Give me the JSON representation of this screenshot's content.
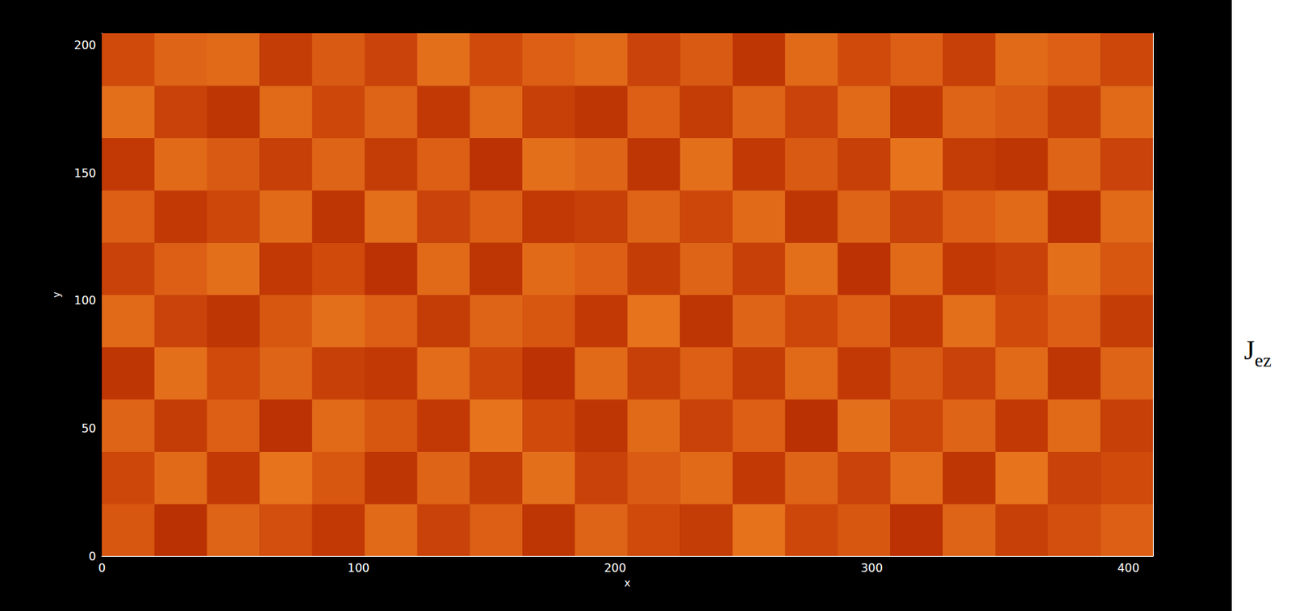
{
  "chart_data": {
    "type": "heatmap",
    "x_label": "x",
    "y_label": "y",
    "annotation": {
      "main": "J",
      "subscript": "ez"
    },
    "xlim": [
      0,
      409.6
    ],
    "ylim": [
      0,
      204.8
    ],
    "xticks": [
      0,
      100,
      200,
      300,
      400
    ],
    "yticks": [
      0,
      50,
      100,
      150,
      200
    ],
    "grid": false,
    "x_edges": [
      0,
      20.48,
      40.96,
      61.44,
      81.92,
      102.4,
      122.88,
      143.36,
      163.84,
      184.32,
      204.8,
      225.28,
      245.76,
      266.24,
      286.72,
      307.2,
      327.68,
      348.16,
      368.64,
      389.12,
      409.6
    ],
    "y_edges": [
      0,
      20.48,
      40.96,
      61.44,
      81.92,
      102.4,
      122.88,
      143.36,
      163.84,
      184.32,
      204.8
    ],
    "zlim": [
      0,
      1
    ],
    "cells": [
      [
        0.55,
        0.35,
        0.6,
        0.52,
        0.4,
        0.62,
        0.45,
        0.58,
        0.38,
        0.6,
        0.5,
        0.42,
        0.65,
        0.48,
        0.55,
        0.36,
        0.6,
        0.44,
        0.52,
        0.58
      ],
      [
        0.48,
        0.62,
        0.4,
        0.66,
        0.55,
        0.38,
        0.6,
        0.42,
        0.64,
        0.45,
        0.57,
        0.62,
        0.4,
        0.6,
        0.46,
        0.63,
        0.38,
        0.66,
        0.45,
        0.5
      ],
      [
        0.6,
        0.42,
        0.58,
        0.36,
        0.62,
        0.55,
        0.4,
        0.66,
        0.5,
        0.38,
        0.62,
        0.45,
        0.58,
        0.35,
        0.64,
        0.48,
        0.6,
        0.4,
        0.62,
        0.44
      ],
      [
        0.38,
        0.64,
        0.5,
        0.6,
        0.44,
        0.4,
        0.63,
        0.48,
        0.36,
        0.62,
        0.44,
        0.58,
        0.42,
        0.62,
        0.4,
        0.56,
        0.45,
        0.62,
        0.38,
        0.6
      ],
      [
        0.62,
        0.46,
        0.38,
        0.55,
        0.64,
        0.58,
        0.42,
        0.6,
        0.55,
        0.4,
        0.66,
        0.38,
        0.6,
        0.48,
        0.58,
        0.4,
        0.64,
        0.5,
        0.58,
        0.42
      ],
      [
        0.45,
        0.58,
        0.64,
        0.4,
        0.5,
        0.36,
        0.62,
        0.38,
        0.62,
        0.58,
        0.42,
        0.6,
        0.44,
        0.64,
        0.36,
        0.62,
        0.4,
        0.45,
        0.64,
        0.55
      ],
      [
        0.58,
        0.4,
        0.48,
        0.62,
        0.38,
        0.64,
        0.46,
        0.58,
        0.4,
        0.44,
        0.6,
        0.48,
        0.62,
        0.38,
        0.6,
        0.45,
        0.58,
        0.62,
        0.36,
        0.62
      ],
      [
        0.4,
        0.62,
        0.56,
        0.44,
        0.6,
        0.42,
        0.58,
        0.36,
        0.64,
        0.6,
        0.38,
        0.64,
        0.4,
        0.56,
        0.44,
        0.66,
        0.42,
        0.38,
        0.6,
        0.46
      ],
      [
        0.64,
        0.45,
        0.38,
        0.62,
        0.48,
        0.6,
        0.4,
        0.62,
        0.44,
        0.38,
        0.58,
        0.42,
        0.6,
        0.46,
        0.62,
        0.4,
        0.6,
        0.56,
        0.44,
        0.62
      ],
      [
        0.5,
        0.6,
        0.62,
        0.42,
        0.56,
        0.46,
        0.64,
        0.5,
        0.58,
        0.62,
        0.46,
        0.56,
        0.38,
        0.62,
        0.5,
        0.58,
        0.44,
        0.62,
        0.58,
        0.48
      ]
    ]
  }
}
